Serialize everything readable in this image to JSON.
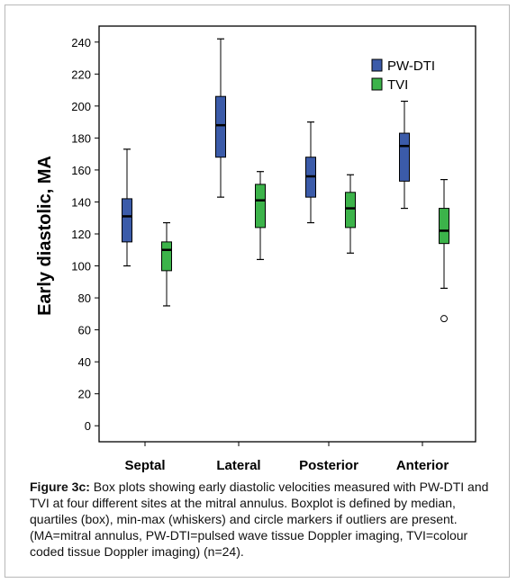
{
  "chart_data": {
    "type": "boxplot",
    "ylabel": "Early diastolic, MA",
    "ylim": [
      -10,
      250
    ],
    "yticks": [
      "0",
      "20",
      "40",
      "60",
      "80",
      "100",
      "120",
      "140",
      "160",
      "180",
      "200",
      "220",
      "240"
    ],
    "categories": [
      "Septal",
      "Lateral",
      "Posterior",
      "Anterior"
    ],
    "legend_position": "top-right",
    "series": [
      {
        "name": "PW-DTI",
        "color": "#3b5ba9",
        "boxes": [
          {
            "min": 100,
            "q1": 115,
            "median": 131,
            "q3": 142,
            "max": 173,
            "outliers": []
          },
          {
            "min": 143,
            "q1": 168,
            "median": 188,
            "q3": 206,
            "max": 242,
            "outliers": []
          },
          {
            "min": 127,
            "q1": 143,
            "median": 156,
            "q3": 168,
            "max": 190,
            "outliers": []
          },
          {
            "min": 136,
            "q1": 153,
            "median": 175,
            "q3": 183,
            "max": 203,
            "outliers": []
          }
        ]
      },
      {
        "name": "TVI",
        "color": "#3cb34a",
        "boxes": [
          {
            "min": 75,
            "q1": 97,
            "median": 110,
            "q3": 115,
            "max": 127,
            "outliers": []
          },
          {
            "min": 104,
            "q1": 124,
            "median": 141,
            "q3": 151,
            "max": 159,
            "outliers": []
          },
          {
            "min": 108,
            "q1": 124,
            "median": 136,
            "q3": 146,
            "max": 157,
            "outliers": []
          },
          {
            "min": 86,
            "q1": 114,
            "median": 122,
            "q3": 136,
            "max": 154,
            "outliers": [
              67
            ]
          }
        ]
      }
    ]
  },
  "caption": {
    "label": "Figure 3c:",
    "text": " Box plots showing early diastolic velocities measured with PW-DTI and TVI at four different sites at the mitral annulus. Boxplot is defined by median, quartiles (box), min-max (whiskers) and circle markers if outliers are present. (MA=mitral annulus, PW-DTI=pulsed wave tissue Doppler imaging, TVI=colour coded tissue Doppler imaging) (n=24)."
  }
}
